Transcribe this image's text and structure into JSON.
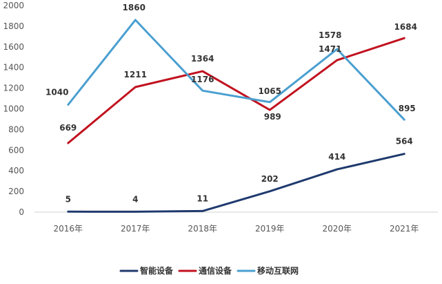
{
  "chart_data": {
    "type": "line",
    "title": "",
    "xlabel": "",
    "ylabel": "",
    "categories": [
      "2016年",
      "2017年",
      "2018年",
      "2019年",
      "2020年",
      "2021年"
    ],
    "ylim": [
      0,
      2000
    ],
    "yticks": [
      0,
      200,
      400,
      600,
      800,
      1000,
      1200,
      1400,
      1600,
      1800,
      2000
    ],
    "ytick_labels": [
      "0",
      "200",
      "400",
      "600",
      "800",
      "1000",
      "1200",
      "1400",
      "1600",
      "1800",
      "2000"
    ],
    "grid": false,
    "legend_position": "bottom",
    "series": [
      {
        "name": "智能设备",
        "color": "#1f3a6e",
        "values": [
          5,
          4,
          11,
          202,
          414,
          564
        ],
        "labels": [
          "5",
          "4",
          "11",
          "202",
          "414",
          "564"
        ]
      },
      {
        "name": "通信设备",
        "color": "#c1121f",
        "values": [
          669,
          1211,
          1364,
          989,
          1471,
          1684
        ],
        "labels": [
          "669",
          "1211",
          "1364",
          "989",
          "1471",
          "1684"
        ]
      },
      {
        "name": "移动互联网",
        "color": "#4a9fd0",
        "values": [
          1040,
          1860,
          1176,
          1065,
          1578,
          895
        ],
        "labels": [
          "1040",
          "1860",
          "1176",
          "1065",
          "1578",
          "895"
        ]
      }
    ]
  }
}
